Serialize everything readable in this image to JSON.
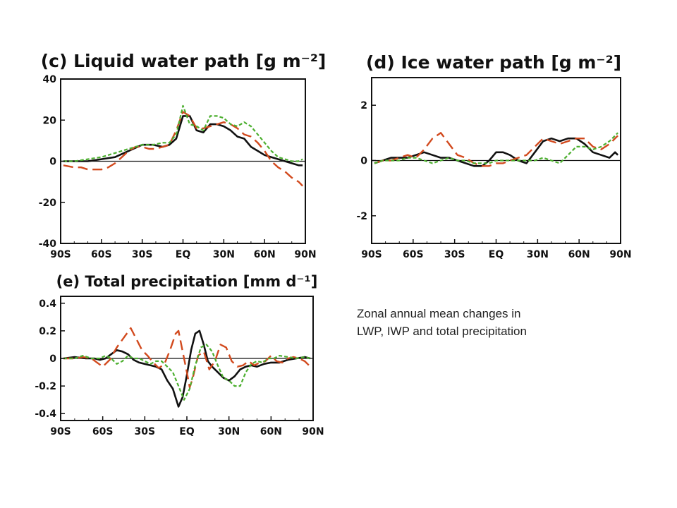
{
  "colors": {
    "black_series": "#111111",
    "red_series": "#d24a1e",
    "green_series": "#4caf2f",
    "background": "#ffffff"
  },
  "caption": {
    "line1": "Zonal annual mean changes in",
    "line2": "LWP, IWP and total precipitation"
  },
  "chart_data": [
    {
      "type": "line",
      "title": "(c) Liquid water path [g m⁻²]",
      "x_ticks": [
        "90S",
        "60S",
        "30S",
        "EQ",
        "30N",
        "60N",
        "90N"
      ],
      "y_ticks": [
        "40",
        "20",
        "0",
        "-20",
        "-40"
      ],
      "xlim": [
        -90,
        90
      ],
      "ylim": [
        -40,
        40
      ],
      "zero_line": true,
      "series": [
        {
          "style": "solid",
          "x": [
            -88,
            -80,
            -70,
            -60,
            -50,
            -40,
            -30,
            -22,
            -15,
            -10,
            -5,
            0,
            5,
            10,
            15,
            20,
            25,
            30,
            35,
            40,
            45,
            50,
            55,
            60,
            65,
            70,
            75,
            80,
            85,
            88
          ],
          "values": [
            0,
            0,
            0,
            1,
            2,
            5,
            8,
            8,
            7,
            8,
            11,
            22,
            22,
            15,
            14,
            18,
            18,
            17,
            15,
            12,
            11,
            7,
            5,
            3,
            2,
            1,
            0,
            -1,
            -2,
            -2
          ]
        },
        {
          "style": "dashed",
          "x": [
            -88,
            -80,
            -75,
            -70,
            -65,
            -60,
            -55,
            -50,
            -45,
            -40,
            -35,
            -30,
            -25,
            -20,
            -15,
            -10,
            -5,
            0,
            5,
            10,
            15,
            20,
            25,
            30,
            35,
            40,
            45,
            50,
            55,
            60,
            65,
            70,
            75,
            80,
            85,
            88
          ],
          "values": [
            -2,
            -3,
            -3,
            -4,
            -4,
            -4,
            -3,
            -1,
            2,
            5,
            7,
            7,
            6,
            6,
            7,
            8,
            15,
            24,
            22,
            16,
            16,
            17,
            18,
            19,
            18,
            16,
            13,
            12,
            9,
            5,
            0,
            -3,
            -5,
            -8,
            -10,
            -12
          ]
        },
        {
          "style": "dotted",
          "x": [
            -88,
            -80,
            -70,
            -60,
            -50,
            -40,
            -30,
            -22,
            -15,
            -10,
            -5,
            0,
            5,
            10,
            15,
            20,
            25,
            30,
            35,
            40,
            45,
            50,
            55,
            60,
            65,
            70,
            75,
            80,
            85,
            88
          ],
          "values": [
            0,
            0,
            1,
            2,
            4,
            6,
            8,
            8,
            9,
            9,
            13,
            27,
            18,
            17,
            15,
            22,
            22,
            21,
            18,
            17,
            19,
            17,
            13,
            9,
            5,
            2,
            1,
            0,
            0,
            1
          ]
        }
      ]
    },
    {
      "type": "line",
      "title": "(d) Ice water path [g m⁻²]",
      "x_ticks": [
        "90S",
        "60S",
        "30S",
        "EQ",
        "30N",
        "60N",
        "90N"
      ],
      "y_ticks": [
        "2",
        "0",
        "-2"
      ],
      "xlim": [
        -90,
        90
      ],
      "ylim": [
        -3,
        3
      ],
      "zero_line": true,
      "series": [
        {
          "style": "solid",
          "x": [
            -88,
            -82,
            -76,
            -70,
            -64,
            -58,
            -52,
            -46,
            -40,
            -34,
            -28,
            -22,
            -16,
            -10,
            -5,
            0,
            5,
            10,
            16,
            22,
            28,
            34,
            40,
            46,
            52,
            58,
            64,
            70,
            76,
            82,
            86,
            88
          ],
          "values": [
            -0.1,
            0,
            0.1,
            0.1,
            0.1,
            0.2,
            0.3,
            0.2,
            0.1,
            0.1,
            0,
            -0.1,
            -0.2,
            -0.2,
            0,
            0.3,
            0.3,
            0.2,
            0,
            -0.1,
            0.3,
            0.7,
            0.8,
            0.7,
            0.8,
            0.8,
            0.6,
            0.3,
            0.2,
            0.1,
            0.3,
            0.2
          ]
        },
        {
          "style": "dashed",
          "x": [
            -88,
            -82,
            -76,
            -70,
            -64,
            -58,
            -52,
            -46,
            -40,
            -34,
            -28,
            -22,
            -16,
            -10,
            -5,
            0,
            5,
            10,
            16,
            22,
            28,
            34,
            40,
            46,
            52,
            58,
            64,
            70,
            76,
            82,
            86,
            88
          ],
          "values": [
            -0.1,
            0,
            0,
            0.1,
            0.2,
            0.1,
            0.4,
            0.8,
            1,
            0.6,
            0.2,
            0.1,
            -0.1,
            -0.2,
            -0.2,
            -0.1,
            -0.1,
            0,
            0.1,
            0.2,
            0.5,
            0.8,
            0.7,
            0.6,
            0.7,
            0.8,
            0.8,
            0.5,
            0.4,
            0.6,
            0.8,
            0.9
          ]
        },
        {
          "style": "dotted",
          "x": [
            -88,
            -82,
            -76,
            -70,
            -64,
            -58,
            -52,
            -46,
            -40,
            -34,
            -28,
            -22,
            -16,
            -10,
            -5,
            0,
            5,
            10,
            16,
            22,
            28,
            34,
            40,
            46,
            52,
            58,
            64,
            70,
            76,
            82,
            86,
            88
          ],
          "values": [
            -0.1,
            0,
            0,
            0,
            0.1,
            0.1,
            0,
            -0.1,
            0,
            0.1,
            0,
            0,
            -0.1,
            -0.1,
            -0.1,
            0,
            0,
            0,
            0,
            0,
            0,
            0.1,
            0,
            -0.1,
            0.2,
            0.5,
            0.5,
            0.4,
            0.5,
            0.7,
            0.9,
            1
          ]
        }
      ]
    },
    {
      "type": "line",
      "title": "(e) Total precipitation [mm d⁻¹]",
      "x_ticks": [
        "90S",
        "60S",
        "30S",
        "EQ",
        "30N",
        "60N",
        "90N"
      ],
      "y_ticks": [
        "0.4",
        "0.2",
        "0",
        "-0.2",
        "-0.4"
      ],
      "xlim": [
        -90,
        90
      ],
      "ylim": [
        -0.45,
        0.45
      ],
      "zero_line": true,
      "series": [
        {
          "style": "solid",
          "x": [
            -88,
            -80,
            -72,
            -66,
            -62,
            -58,
            -54,
            -50,
            -46,
            -42,
            -38,
            -34,
            -30,
            -26,
            -22,
            -18,
            -14,
            -10,
            -6,
            -3,
            0,
            3,
            6,
            9,
            12,
            15,
            18,
            22,
            26,
            30,
            34,
            38,
            42,
            46,
            50,
            55,
            60,
            66,
            72,
            78,
            84,
            88
          ],
          "values": [
            0,
            0.01,
            0,
            0,
            -0.01,
            0,
            0.03,
            0.06,
            0.05,
            0.03,
            -0.01,
            -0.03,
            -0.04,
            -0.05,
            -0.06,
            -0.08,
            -0.16,
            -0.22,
            -0.35,
            -0.28,
            -0.12,
            0.06,
            0.18,
            0.2,
            0.1,
            -0.02,
            -0.06,
            -0.1,
            -0.14,
            -0.16,
            -0.13,
            -0.08,
            -0.06,
            -0.05,
            -0.06,
            -0.04,
            -0.03,
            -0.03,
            -0.01,
            0,
            0.01,
            0
          ]
        },
        {
          "style": "dashed",
          "x": [
            -88,
            -80,
            -74,
            -68,
            -64,
            -60,
            -55,
            -50,
            -45,
            -40,
            -36,
            -32,
            -28,
            -24,
            -20,
            -16,
            -12,
            -8,
            -6,
            -3,
            0,
            2,
            4,
            8,
            12,
            16,
            20,
            24,
            28,
            32,
            36,
            40,
            44,
            48,
            52,
            56,
            60,
            64,
            68,
            72,
            76,
            80,
            84,
            88
          ],
          "values": [
            0,
            0,
            0.01,
            0,
            -0.03,
            -0.06,
            -0.01,
            0.08,
            0.15,
            0.22,
            0.14,
            0.06,
            0.02,
            -0.03,
            -0.07,
            -0.04,
            0.06,
            0.18,
            0.2,
            0.05,
            -0.1,
            -0.21,
            -0.15,
            0.02,
            0.05,
            -0.08,
            -0.02,
            0.1,
            0.08,
            -0.02,
            -0.06,
            -0.05,
            -0.02,
            -0.05,
            -0.03,
            -0.02,
            0.02,
            -0.02,
            -0.03,
            0,
            0.01,
            0,
            -0.02,
            -0.06
          ]
        },
        {
          "style": "dotted",
          "x": [
            -88,
            -80,
            -74,
            -68,
            -62,
            -58,
            -54,
            -50,
            -46,
            -42,
            -38,
            -34,
            -30,
            -26,
            -22,
            -18,
            -14,
            -10,
            -6,
            -2,
            2,
            6,
            10,
            14,
            18,
            22,
            26,
            30,
            34,
            38,
            42,
            46,
            50,
            54,
            58,
            62,
            66,
            72,
            78,
            84,
            88
          ],
          "values": [
            0,
            0,
            0.02,
            0,
            0,
            0.02,
            0,
            -0.04,
            -0.02,
            0.02,
            0,
            0,
            -0.02,
            -0.04,
            -0.02,
            -0.02,
            -0.06,
            -0.1,
            -0.2,
            -0.3,
            -0.22,
            -0.05,
            0.08,
            0.1,
            0.05,
            -0.05,
            -0.14,
            -0.16,
            -0.2,
            -0.2,
            -0.1,
            -0.04,
            -0.02,
            -0.03,
            0,
            0,
            0.02,
            0.01,
            0,
            0.01,
            0
          ]
        }
      ]
    }
  ]
}
